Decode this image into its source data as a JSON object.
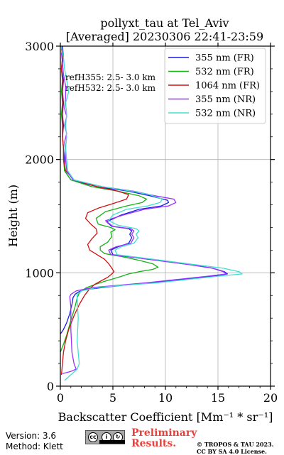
{
  "chart_data": {
    "type": "line",
    "title_line1": "pollyxt_tau at Tel_Aviv",
    "title_line2": "[Averaged] 20230306 22:41-23:59",
    "xlabel": "Backscatter Coefficient [Mm⁻¹ * sr⁻¹]",
    "ylabel": "Height (m)",
    "xlim": [
      0,
      20
    ],
    "ylim": [
      0,
      3000
    ],
    "xticks": [
      0,
      5,
      10,
      15,
      20
    ],
    "yticks": [
      0,
      1000,
      2000,
      3000
    ],
    "grid": true,
    "legend_position": "top-right",
    "annotations": [
      "refH355:  2.5- 3.0 km",
      "refH532:  2.5- 3.0 km"
    ],
    "series": [
      {
        "name": "355 nm (FR)",
        "color": "#1a1ae6",
        "points": [
          [
            0.2,
            3000
          ],
          [
            0.3,
            2900
          ],
          [
            0.1,
            2800
          ],
          [
            0.3,
            2700
          ],
          [
            0.2,
            2600
          ],
          [
            0.3,
            2500
          ],
          [
            0.2,
            2400
          ],
          [
            0.3,
            2300
          ],
          [
            0.2,
            2200
          ],
          [
            0.3,
            2100
          ],
          [
            0.4,
            2000
          ],
          [
            0.4,
            1900
          ],
          [
            1.0,
            1820
          ],
          [
            3.5,
            1760
          ],
          [
            6.5,
            1720
          ],
          [
            8.5,
            1680
          ],
          [
            10.2,
            1640
          ],
          [
            10.3,
            1620
          ],
          [
            9.6,
            1590
          ],
          [
            7.5,
            1560
          ],
          [
            5.8,
            1510
          ],
          [
            4.4,
            1450
          ],
          [
            4.9,
            1410
          ],
          [
            6.5,
            1390
          ],
          [
            6.8,
            1370
          ],
          [
            6.6,
            1340
          ],
          [
            6.8,
            1310
          ],
          [
            6.5,
            1260
          ],
          [
            5.5,
            1230
          ],
          [
            4.8,
            1200
          ],
          [
            5.0,
            1160
          ],
          [
            7.5,
            1130
          ],
          [
            10.0,
            1100
          ],
          [
            12.5,
            1070
          ],
          [
            14.5,
            1040
          ],
          [
            15.6,
            1010
          ],
          [
            15.9,
            990
          ],
          [
            14.5,
            970
          ],
          [
            11.5,
            940
          ],
          [
            8.5,
            910
          ],
          [
            6.0,
            890
          ],
          [
            4.0,
            870
          ],
          [
            2.2,
            850
          ],
          [
            1.7,
            830
          ],
          [
            1.4,
            810
          ],
          [
            1.2,
            780
          ],
          [
            1.1,
            720
          ],
          [
            0.9,
            640
          ],
          [
            0.6,
            560
          ],
          [
            0.3,
            500
          ],
          [
            0.0,
            460
          ]
        ]
      },
      {
        "name": "532 nm (FR)",
        "color": "#12b312",
        "points": [
          [
            0.1,
            3000
          ],
          [
            0.2,
            2900
          ],
          [
            0.1,
            2800
          ],
          [
            0.2,
            2700
          ],
          [
            0.1,
            2600
          ],
          [
            0.2,
            2500
          ],
          [
            0.1,
            2400
          ],
          [
            0.2,
            2300
          ],
          [
            0.2,
            2200
          ],
          [
            0.3,
            2100
          ],
          [
            0.3,
            2000
          ],
          [
            0.4,
            1900
          ],
          [
            1.0,
            1820
          ],
          [
            3.0,
            1760
          ],
          [
            5.5,
            1720
          ],
          [
            7.5,
            1680
          ],
          [
            8.2,
            1650
          ],
          [
            7.8,
            1620
          ],
          [
            6.3,
            1590
          ],
          [
            4.3,
            1540
          ],
          [
            3.4,
            1480
          ],
          [
            3.6,
            1430
          ],
          [
            4.8,
            1400
          ],
          [
            5.2,
            1380
          ],
          [
            4.8,
            1360
          ],
          [
            4.9,
            1320
          ],
          [
            4.5,
            1270
          ],
          [
            3.8,
            1230
          ],
          [
            3.8,
            1200
          ],
          [
            4.2,
            1170
          ],
          [
            6.0,
            1140
          ],
          [
            7.5,
            1110
          ],
          [
            8.8,
            1080
          ],
          [
            9.3,
            1050
          ],
          [
            8.8,
            1030
          ],
          [
            7.5,
            1010
          ],
          [
            6.5,
            990
          ],
          [
            5.5,
            960
          ],
          [
            4.4,
            930
          ],
          [
            3.4,
            900
          ],
          [
            2.5,
            870
          ],
          [
            2.0,
            840
          ],
          [
            1.8,
            820
          ],
          [
            1.6,
            780
          ],
          [
            1.4,
            700
          ],
          [
            1.0,
            580
          ],
          [
            0.6,
            450
          ],
          [
            0.3,
            370
          ],
          [
            0.0,
            300
          ]
        ]
      },
      {
        "name": "1064 nm (FR)",
        "color": "#d11010",
        "points": [
          [
            0.1,
            3000
          ],
          [
            0.2,
            2900
          ],
          [
            0.1,
            2800
          ],
          [
            0.2,
            2700
          ],
          [
            0.2,
            2600
          ],
          [
            0.2,
            2500
          ],
          [
            0.2,
            2400
          ],
          [
            0.2,
            2300
          ],
          [
            0.2,
            2200
          ],
          [
            0.3,
            2100
          ],
          [
            0.3,
            2000
          ],
          [
            0.5,
            1900
          ],
          [
            1.3,
            1820
          ],
          [
            3.5,
            1760
          ],
          [
            5.5,
            1720
          ],
          [
            6.5,
            1690
          ],
          [
            6.3,
            1650
          ],
          [
            5.0,
            1610
          ],
          [
            3.6,
            1570
          ],
          [
            2.6,
            1530
          ],
          [
            2.4,
            1480
          ],
          [
            2.9,
            1430
          ],
          [
            3.4,
            1390
          ],
          [
            3.5,
            1350
          ],
          [
            3.0,
            1300
          ],
          [
            2.6,
            1250
          ],
          [
            2.8,
            1200
          ],
          [
            3.5,
            1160
          ],
          [
            4.2,
            1120
          ],
          [
            4.6,
            1080
          ],
          [
            4.9,
            1040
          ],
          [
            5.1,
            1010
          ],
          [
            4.9,
            990
          ],
          [
            4.5,
            960
          ],
          [
            3.9,
            930
          ],
          [
            3.3,
            900
          ],
          [
            2.8,
            860
          ],
          [
            2.3,
            800
          ],
          [
            1.8,
            720
          ],
          [
            1.3,
            620
          ],
          [
            0.8,
            500
          ],
          [
            0.5,
            400
          ],
          [
            0.3,
            300
          ],
          [
            0.2,
            200
          ],
          [
            0.1,
            100
          ]
        ]
      },
      {
        "name": "355 nm (NR)",
        "color": "#9b30ff",
        "points": [
          [
            0.1,
            2940
          ],
          [
            0.2,
            2850
          ],
          [
            0.3,
            2750
          ],
          [
            0.5,
            2650
          ],
          [
            0.5,
            2550
          ],
          [
            0.4,
            2450
          ],
          [
            0.6,
            2380
          ],
          [
            0.4,
            2300
          ],
          [
            0.6,
            2230
          ],
          [
            0.4,
            2150
          ],
          [
            0.5,
            2080
          ],
          [
            0.5,
            2000
          ],
          [
            0.6,
            1900
          ],
          [
            1.2,
            1820
          ],
          [
            4.0,
            1760
          ],
          [
            7.0,
            1720
          ],
          [
            9.0,
            1680
          ],
          [
            10.8,
            1650
          ],
          [
            11.0,
            1620
          ],
          [
            10.3,
            1590
          ],
          [
            8.0,
            1560
          ],
          [
            6.0,
            1510
          ],
          [
            4.3,
            1460
          ],
          [
            5.0,
            1410
          ],
          [
            6.7,
            1390
          ],
          [
            7.0,
            1370
          ],
          [
            6.8,
            1340
          ],
          [
            7.0,
            1310
          ],
          [
            6.7,
            1260
          ],
          [
            5.3,
            1230
          ],
          [
            4.6,
            1200
          ],
          [
            4.8,
            1160
          ],
          [
            7.5,
            1130
          ],
          [
            10.0,
            1100
          ],
          [
            12.5,
            1070
          ],
          [
            14.5,
            1040
          ],
          [
            15.5,
            1010
          ],
          [
            15.8,
            990
          ],
          [
            14.0,
            970
          ],
          [
            11.0,
            940
          ],
          [
            8.0,
            910
          ],
          [
            5.5,
            890
          ],
          [
            3.0,
            870
          ],
          [
            1.5,
            840
          ],
          [
            1.0,
            810
          ],
          [
            0.9,
            790
          ],
          [
            1.0,
            700
          ],
          [
            1.0,
            500
          ],
          [
            1.1,
            300
          ],
          [
            1.3,
            200
          ],
          [
            1.5,
            150
          ],
          [
            1.0,
            130
          ],
          [
            0.2,
            110
          ]
        ]
      },
      {
        "name": "532 nm (NR)",
        "color": "#40e0d0",
        "points": [
          [
            0.1,
            3000
          ],
          [
            0.3,
            2900
          ],
          [
            0.4,
            2800
          ],
          [
            0.6,
            2700
          ],
          [
            0.8,
            2600
          ],
          [
            0.5,
            2500
          ],
          [
            0.6,
            2400
          ],
          [
            0.5,
            2300
          ],
          [
            0.6,
            2200
          ],
          [
            0.5,
            2100
          ],
          [
            0.6,
            2000
          ],
          [
            0.7,
            1900
          ],
          [
            1.3,
            1820
          ],
          [
            4.0,
            1760
          ],
          [
            6.8,
            1720
          ],
          [
            8.5,
            1690
          ],
          [
            9.7,
            1650
          ],
          [
            9.5,
            1620
          ],
          [
            8.3,
            1590
          ],
          [
            6.3,
            1560
          ],
          [
            5.0,
            1510
          ],
          [
            4.6,
            1460
          ],
          [
            5.5,
            1420
          ],
          [
            7.2,
            1390
          ],
          [
            7.5,
            1370
          ],
          [
            7.2,
            1340
          ],
          [
            7.4,
            1310
          ],
          [
            7.0,
            1260
          ],
          [
            5.8,
            1230
          ],
          [
            5.2,
            1200
          ],
          [
            5.4,
            1160
          ],
          [
            8.0,
            1130
          ],
          [
            10.5,
            1100
          ],
          [
            13.0,
            1070
          ],
          [
            15.5,
            1040
          ],
          [
            17.0,
            1010
          ],
          [
            17.3,
            990
          ],
          [
            15.0,
            970
          ],
          [
            12.0,
            940
          ],
          [
            9.0,
            910
          ],
          [
            6.0,
            890
          ],
          [
            3.5,
            870
          ],
          [
            2.0,
            840
          ],
          [
            1.6,
            810
          ],
          [
            1.6,
            780
          ],
          [
            1.7,
            600
          ],
          [
            1.6,
            400
          ],
          [
            1.8,
            200
          ],
          [
            1.6,
            150
          ],
          [
            1.0,
            100
          ],
          [
            0.4,
            50
          ]
        ]
      }
    ]
  },
  "footer": {
    "version": "Version: 3.6",
    "method": "Method: Klett",
    "cc_badge": "cc by sa",
    "preliminary_line1": "Preliminary",
    "preliminary_line2": "Results.",
    "copyright_line1": "© TROPOS & TAU 2023.",
    "copyright_line2": "CC BY SA 4.0 License."
  }
}
